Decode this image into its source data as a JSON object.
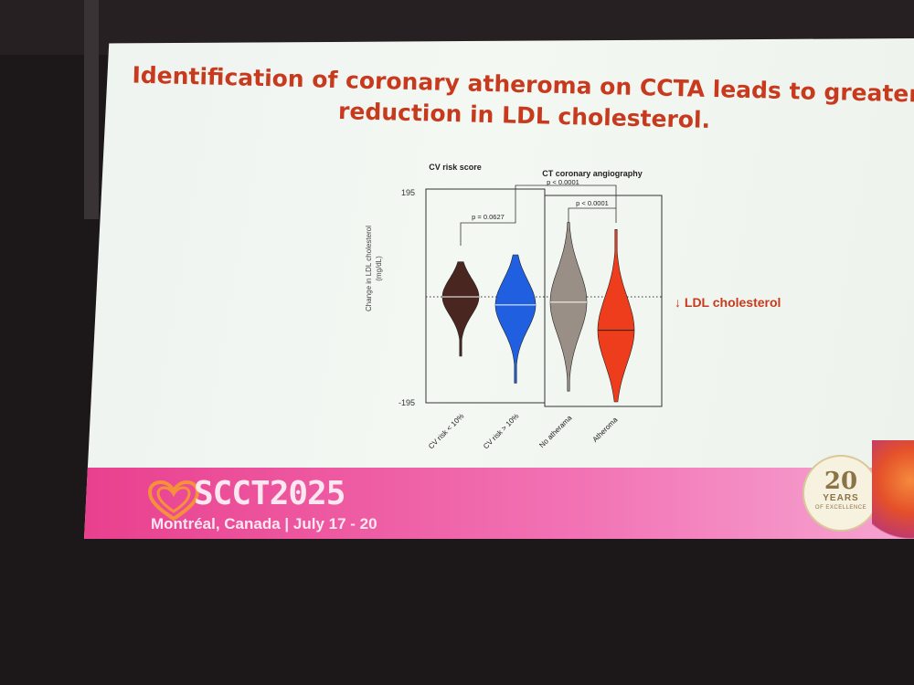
{
  "slide": {
    "title_line1": "Identification of coronary atheroma on CCTA leads to greater",
    "title_line2": "reduction in LDL cholesterol."
  },
  "footer": {
    "brand": "SCCT2025",
    "location": "Montréal, Canada | July 17 - 20",
    "badge_number": "20",
    "badge_text": "YEARS",
    "badge_subtext": "OF EXCELLENCE"
  },
  "colors": {
    "title": "#c83a1e",
    "footer_pink": "#e9408e"
  },
  "chart_data": {
    "type": "violin",
    "title": "",
    "ylabel": "Change in LDL cholesterol\n(mg/dL)",
    "ylim": [
      -195,
      195
    ],
    "yticks": [
      "195",
      "-195"
    ],
    "reference_line": 0,
    "panel_labels": [
      "CV risk score",
      "CT coronary angiography"
    ],
    "categories": [
      "CV risk < 10%",
      "CV risk > 10%",
      "No atherama",
      "Atheroma"
    ],
    "series": [
      {
        "category": "CV risk < 10%",
        "color": "#4a2620",
        "min": -110,
        "max": 65,
        "median": 0
      },
      {
        "category": "CV risk > 10%",
        "color": "#1f5fe0",
        "min": -160,
        "max": 78,
        "median": -15
      },
      {
        "category": "No atherama",
        "color": "#9a8f86",
        "min": -175,
        "max": 138,
        "median": -10
      },
      {
        "category": "Atheroma",
        "color": "#ee3d1c",
        "min": -195,
        "max": 125,
        "median": -62
      }
    ],
    "comparisons": [
      {
        "label": "p = 0.0627",
        "groups": [
          "CV risk < 10%",
          "CV risk > 10%"
        ]
      },
      {
        "label": "p < 0.0001",
        "groups": [
          "No atherama",
          "Atheroma"
        ]
      },
      {
        "label": "p < 0.0001",
        "groups": [
          "CV risk > 10%",
          "Atheroma"
        ]
      }
    ],
    "annotation": "↓ LDL cholesterol"
  }
}
